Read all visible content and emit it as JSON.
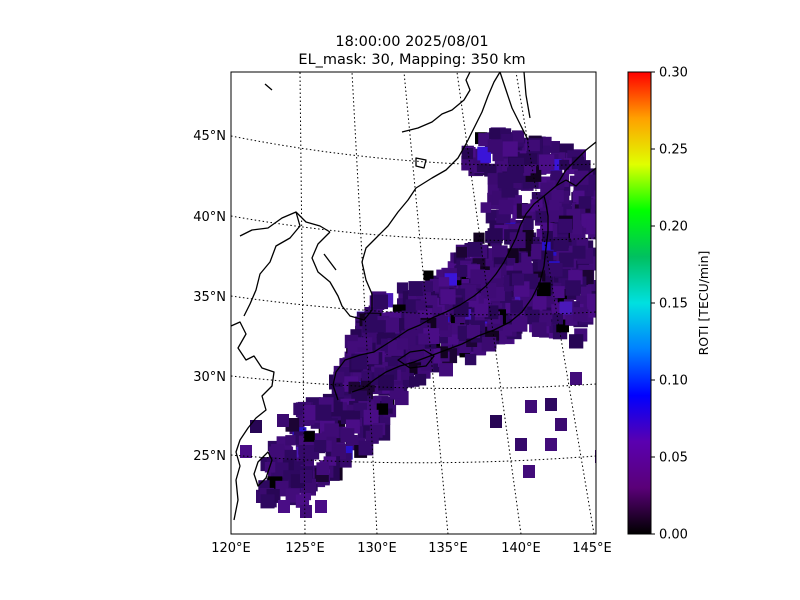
{
  "title": {
    "line1": "18:00:00 2025/08/01",
    "line2": "EL_mask: 30, Mapping: 350 km"
  },
  "map": {
    "lon_range": [
      120,
      145
    ],
    "lat_range": [
      20,
      49
    ],
    "lon_ticks": [
      "120°E",
      "125°E",
      "130°E",
      "135°E",
      "140°E",
      "145°E"
    ],
    "lat_ticks": [
      "25°N",
      "30°N",
      "35°N",
      "40°N",
      "45°N"
    ],
    "graticule": "dotted",
    "coastline_color": "#000000",
    "cell_dominant_color": "#3a0a6e"
  },
  "colorbar": {
    "label": "ROTI [TECU/min]",
    "ticks": [
      "0.00",
      "0.05",
      "0.10",
      "0.15",
      "0.20",
      "0.25",
      "0.30"
    ],
    "range": [
      0,
      0.3
    ],
    "colormap": "nipy_spectral-like (black, purple, blue, cyan, green, yellow, orange, red)"
  }
}
